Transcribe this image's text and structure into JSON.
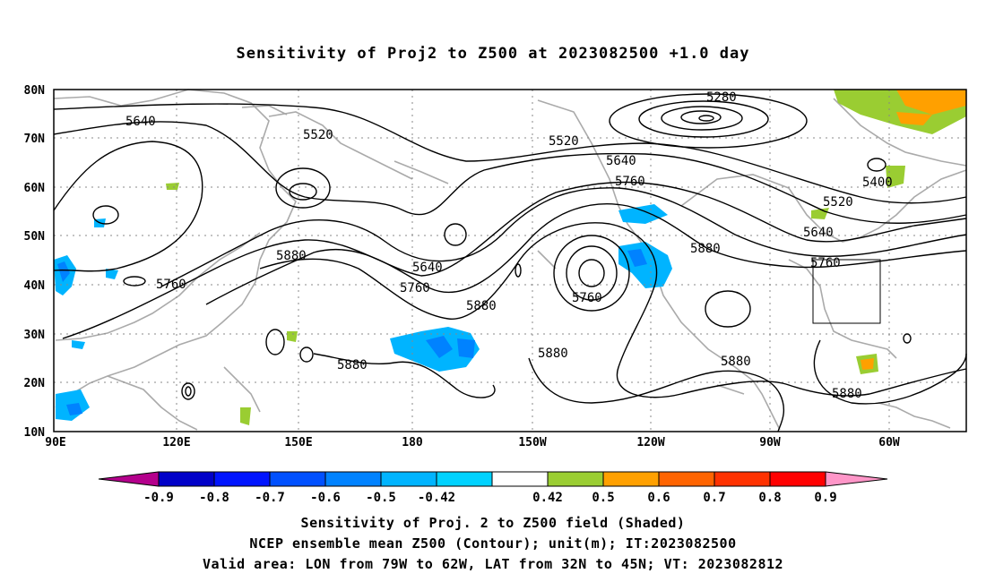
{
  "title": "Sensitivity of Proj2 to Z500 at 2023082500 +1.0 day",
  "map": {
    "lon_labels": [
      "90E",
      "120E",
      "150E",
      "180",
      "150W",
      "120W",
      "90W",
      "60W"
    ],
    "lat_labels": [
      "80N",
      "70N",
      "60N",
      "50N",
      "40N",
      "30N",
      "20N",
      "10N"
    ],
    "lon_range": [
      90,
      310
    ],
    "lat_range": [
      10,
      80
    ],
    "valid_box": {
      "lon_from": -79,
      "lon_to": -62,
      "lat_from": 32,
      "lat_to": 45
    },
    "contour_labels": [
      "5280",
      "5400",
      "5520",
      "5520",
      "5520",
      "5640",
      "5640",
      "5640",
      "5640",
      "5760",
      "5760",
      "5760",
      "5760",
      "5760",
      "5880",
      "5880",
      "5880",
      "5880",
      "5880",
      "5880",
      "5880"
    ]
  },
  "colorbar": {
    "ticks": [
      "-0.9",
      "-0.8",
      "-0.7",
      "-0.6",
      "-0.5",
      "-0.42",
      "0.42",
      "0.5",
      "0.6",
      "0.7",
      "0.8",
      "0.9"
    ],
    "colors": [
      "#b4008c",
      "#0000c8",
      "#0014ff",
      "#0050ff",
      "#0082ff",
      "#00b4ff",
      "#00d2ff",
      "#ffffff",
      "#9acd32",
      "#ffa000",
      "#ff6400",
      "#ff3200",
      "#ff0000",
      "#ff96c8"
    ]
  },
  "captions": {
    "line1": "Sensitivity of Proj. 2 to Z500 field (Shaded)",
    "line2": "NCEP ensemble mean Z500 (Contour); unit(m); IT:2023082500",
    "line3": "Valid area: LON from 79W to 62W, LAT from 32N to 45N; VT: 2023082812"
  }
}
